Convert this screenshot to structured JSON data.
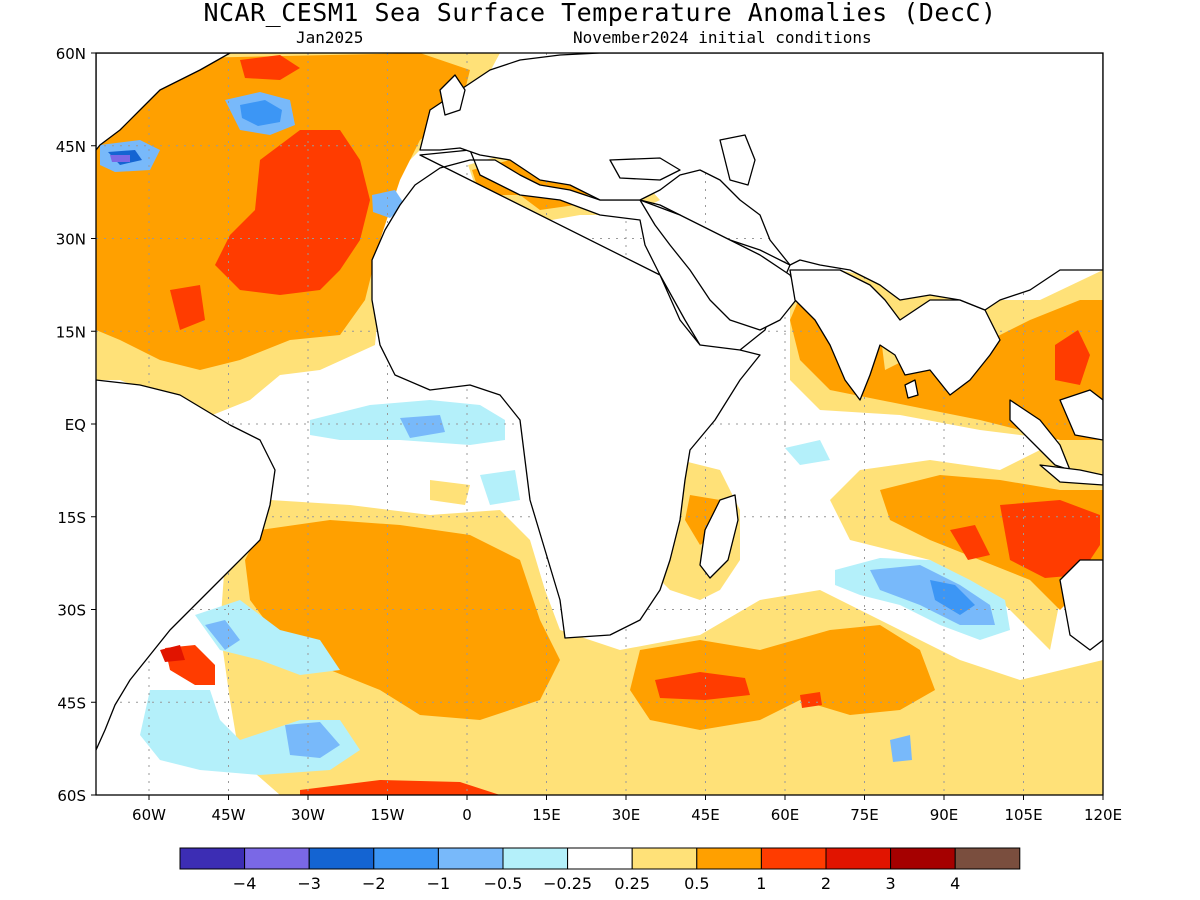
{
  "header": {
    "title": "NCAR_CESM1 Sea Surface Temperature Anomalies (DecC)",
    "valid_month": "Jan2025",
    "init_conditions": "November2024 initial conditions"
  },
  "map": {
    "lon_range": [
      -70,
      120
    ],
    "lat_range": [
      -60,
      60
    ],
    "lon_ticks": [
      {
        "v": -60,
        "label": "60W"
      },
      {
        "v": -45,
        "label": "45W"
      },
      {
        "v": -30,
        "label": "30W"
      },
      {
        "v": -15,
        "label": "15W"
      },
      {
        "v": 0,
        "label": "0"
      },
      {
        "v": 15,
        "label": "15E"
      },
      {
        "v": 30,
        "label": "30E"
      },
      {
        "v": 45,
        "label": "45E"
      },
      {
        "v": 60,
        "label": "60E"
      },
      {
        "v": 75,
        "label": "75E"
      },
      {
        "v": 90,
        "label": "90E"
      },
      {
        "v": 105,
        "label": "105E"
      },
      {
        "v": 120,
        "label": "120E"
      }
    ],
    "lat_ticks": [
      {
        "v": 60,
        "label": "60N"
      },
      {
        "v": 45,
        "label": "45N"
      },
      {
        "v": 30,
        "label": "30N"
      },
      {
        "v": 15,
        "label": "15N"
      },
      {
        "v": 0,
        "label": "EQ"
      },
      {
        "v": -15,
        "label": "15S"
      },
      {
        "v": -30,
        "label": "30S"
      },
      {
        "v": -45,
        "label": "45S"
      },
      {
        "v": -60,
        "label": "60S"
      }
    ],
    "gridlines": true
  },
  "colorbar": {
    "colors": [
      "#3c2db4",
      "#7a68e6",
      "#1464d2",
      "#3c96f5",
      "#78b9fa",
      "#b4f0fa",
      "#ffffff",
      "#ffe178",
      "#ffa000",
      "#ff3c00",
      "#e11400",
      "#a50000",
      "#7a4e3e"
    ],
    "labels": [
      "−4",
      "−3",
      "−2",
      "−1",
      "−0.5",
      "−0.25",
      "0.25",
      "0.5",
      "1",
      "2",
      "3",
      "4"
    ]
  }
}
